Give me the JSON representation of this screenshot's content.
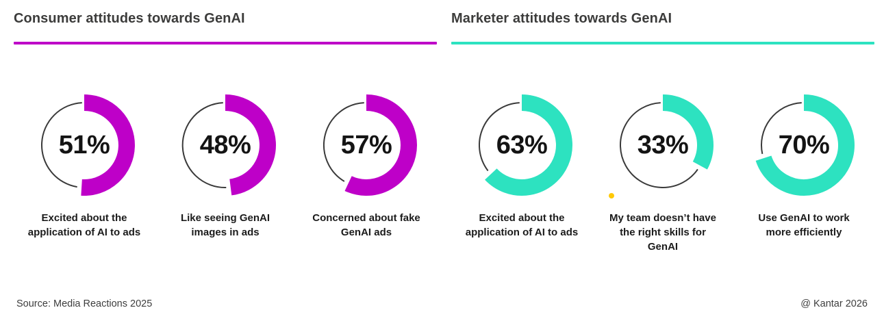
{
  "style": {
    "track_color": "#3a3a3a",
    "dot_color": "#ffc907",
    "consumer_accent": "#be00c8",
    "marketer_accent": "#2de2c0"
  },
  "chart_data": [
    {
      "type": "donut",
      "title": "Consumer attitudes towards GenAI",
      "accent_color": "#be00c8",
      "unit": "%",
      "gauges": [
        {
          "value": 51,
          "display": "51%",
          "label": "Excited about the\napplication of AI to ads"
        },
        {
          "value": 48,
          "display": "48%",
          "label": "Like seeing GenAI\nimages in ads"
        },
        {
          "value": 57,
          "display": "57%",
          "label": "Concerned about fake\nGenAI ads"
        }
      ]
    },
    {
      "type": "donut",
      "title": "Marketer attitudes towards GenAI",
      "accent_color": "#2de2c0",
      "unit": "%",
      "gauges": [
        {
          "value": 63,
          "display": "63%",
          "label": "Excited about the\napplication of AI to ads"
        },
        {
          "value": 33,
          "display": "33%",
          "label": "My team doesn’t have\nthe right skills for\nGenAI"
        },
        {
          "value": 70,
          "display": "70%",
          "label": "Use GenAI to work\nmore efficiently"
        }
      ]
    }
  ],
  "footer": {
    "source": "Source: Media Reactions 2025",
    "copyright": "@ Kantar 2026"
  }
}
